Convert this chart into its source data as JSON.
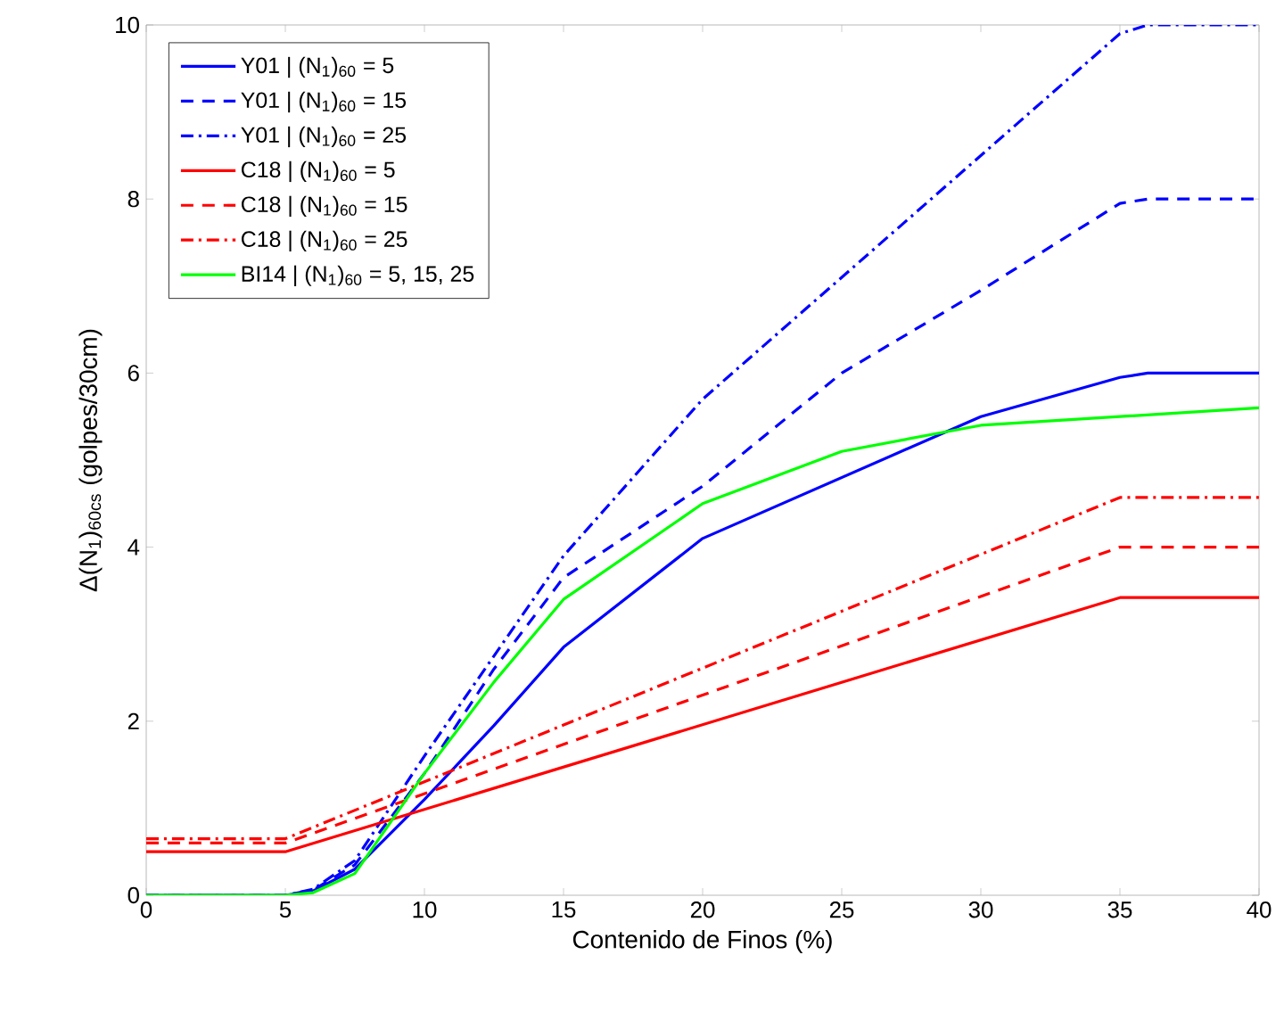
{
  "chart_data": {
    "type": "line",
    "xlabel": "Contenido de Finos (%)",
    "ylabel": "Δ(N$_{1}$)$_{60cs}$ (golpes/30cm)",
    "xlim": [
      0,
      40
    ],
    "ylim": [
      0,
      10
    ],
    "xticks": [
      0,
      5,
      10,
      15,
      20,
      25,
      30,
      35,
      40
    ],
    "yticks": [
      0,
      2,
      4,
      6,
      8,
      10
    ],
    "legend": "top left",
    "grid": false,
    "marker": "none",
    "series": [
      {
        "name": "Y01 | (N$_{1}$)$_{60}$ = 5",
        "color": "#0000ff",
        "line_style": "solid",
        "x": [
          0,
          5,
          6,
          7.5,
          10,
          12.5,
          15,
          20,
          25,
          30,
          35,
          36,
          40
        ],
        "values": [
          0,
          0,
          0.05,
          0.3,
          1.1,
          1.95,
          2.85,
          4.1,
          4.8,
          5.5,
          5.95,
          6,
          6
        ]
      },
      {
        "name": "Y01 | (N$_{1}$)$_{60}$ = 15",
        "color": "#0000ff",
        "line_style": "dashed",
        "x": [
          0,
          5,
          6,
          7.5,
          10,
          12.5,
          15,
          20,
          25,
          30,
          35,
          36,
          40
        ],
        "values": [
          0,
          0,
          0.06,
          0.35,
          1.4,
          2.6,
          3.65,
          4.7,
          6.0,
          6.95,
          7.95,
          8,
          8
        ]
      },
      {
        "name": "Y01 | (N$_{1}$)$_{60}$ = 25",
        "color": "#0000ff",
        "line_style": "dashdot",
        "x": [
          0,
          5,
          6,
          7.5,
          10,
          12.5,
          15,
          20,
          25,
          30,
          35,
          36,
          40
        ],
        "values": [
          0,
          0,
          0.07,
          0.4,
          1.6,
          2.75,
          3.9,
          5.7,
          7.1,
          8.5,
          9.9,
          10,
          10
        ]
      },
      {
        "name": "C18 | (N$_{1}$)$_{60}$ = 5",
        "color": "#ff0000",
        "line_style": "solid",
        "x": [
          0,
          5,
          35,
          40
        ],
        "values": [
          0.5,
          0.5,
          3.42,
          3.42
        ]
      },
      {
        "name": "C18 | (N$_{1}$)$_{60}$ = 15",
        "color": "#ff0000",
        "line_style": "dashed",
        "x": [
          0,
          5,
          35,
          40
        ],
        "values": [
          0.6,
          0.6,
          4.0,
          4.0
        ]
      },
      {
        "name": "C18 | (N$_{1}$)$_{60}$ = 25",
        "color": "#ff0000",
        "line_style": "dashdot",
        "x": [
          0,
          5,
          35,
          40
        ],
        "values": [
          0.65,
          0.65,
          4.57,
          4.57
        ]
      },
      {
        "name": "BI14 | (N$_{1}$)$_{60}$ = 5, 15, 25",
        "color": "#00ff00",
        "line_style": "solid",
        "x": [
          0,
          5,
          6,
          7.5,
          10,
          12.5,
          15,
          20,
          25,
          30,
          35,
          40
        ],
        "values": [
          0,
          0,
          0.03,
          0.25,
          1.4,
          2.45,
          3.4,
          4.5,
          5.1,
          5.4,
          5.5,
          5.6
        ]
      }
    ]
  }
}
